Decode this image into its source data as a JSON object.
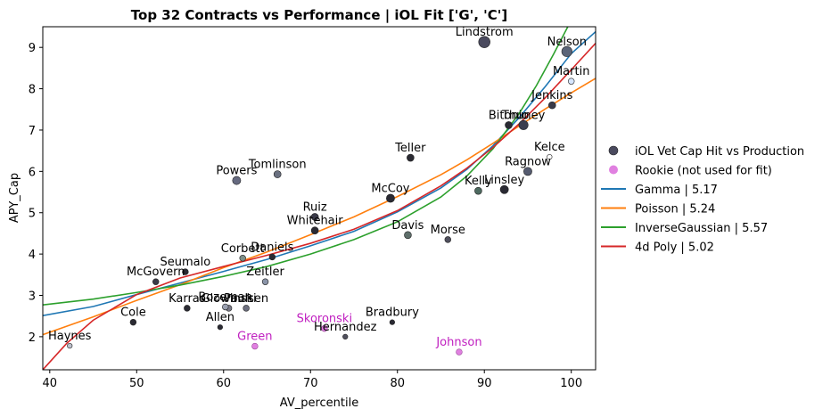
{
  "chart_data": {
    "type": "scatter",
    "title": "Top 32 Contracts vs Performance | iOL Fit ['G', 'C']",
    "xlabel": "AV_percentile",
    "ylabel": "APY_Cap",
    "xlim": [
      39.2,
      102.8
    ],
    "ylim": [
      1.2,
      9.5
    ],
    "xticks": [
      40,
      50,
      60,
      70,
      80,
      90,
      100
    ],
    "yticks": [
      2,
      3,
      4,
      5,
      6,
      7,
      8,
      9
    ],
    "legend_position": "right",
    "points": [
      {
        "name": "Lindstrom",
        "x": 90.0,
        "y": 9.13,
        "size": 9,
        "color": "#4a4a5e",
        "rookie": false
      },
      {
        "name": "Nelson",
        "x": 99.5,
        "y": 8.9,
        "size": 8,
        "color": "#5a6478",
        "rookie": false
      },
      {
        "name": "Martin",
        "x": 100.0,
        "y": 8.18,
        "size": 4,
        "color": "#d7e6ff",
        "rookie": false
      },
      {
        "name": "Jenkins",
        "x": 97.8,
        "y": 7.6,
        "size": 5,
        "color": "#3a3a48",
        "rookie": false
      },
      {
        "name": "Bitonio",
        "x": 92.8,
        "y": 7.12,
        "size": 5,
        "color": "#2a2a33",
        "rookie": false
      },
      {
        "name": "Thuney",
        "x": 94.5,
        "y": 7.12,
        "size": 7,
        "color": "#3b3e4e",
        "rookie": false
      },
      {
        "name": "Teller",
        "x": 81.5,
        "y": 6.33,
        "size": 5,
        "color": "#2a2a33",
        "rookie": false
      },
      {
        "name": "Kelce",
        "x": 97.5,
        "y": 6.35,
        "size": 3,
        "color": "#ffffff",
        "rookie": false
      },
      {
        "name": "Ragnow",
        "x": 95.0,
        "y": 6.0,
        "size": 6,
        "color": "#555b70",
        "rookie": false
      },
      {
        "name": "Powers",
        "x": 61.5,
        "y": 5.78,
        "size": 6,
        "color": "#666a80",
        "rookie": false
      },
      {
        "name": "Tomlinson",
        "x": 66.2,
        "y": 5.93,
        "size": 5,
        "color": "#6a7080",
        "rookie": false
      },
      {
        "name": "Kelly",
        "x": 89.3,
        "y": 5.53,
        "size": 5,
        "color": "#4d6a60",
        "rookie": false
      },
      {
        "name": "Linsley",
        "x": 92.3,
        "y": 5.56,
        "size": 6,
        "color": "#2a2a33",
        "rookie": false
      },
      {
        "name": "McCoy",
        "x": 79.2,
        "y": 5.35,
        "size": 6,
        "color": "#2a2a33",
        "rookie": false
      },
      {
        "name": "Ruiz",
        "x": 70.5,
        "y": 4.9,
        "size": 5,
        "color": "#3a3a48",
        "rookie": false
      },
      {
        "name": "Whitehair",
        "x": 70.5,
        "y": 4.57,
        "size": 5,
        "color": "#2a2a33",
        "rookie": false
      },
      {
        "name": "Davis",
        "x": 81.2,
        "y": 4.46,
        "size": 5,
        "color": "#5e6e6a",
        "rookie": false
      },
      {
        "name": "Morse",
        "x": 85.8,
        "y": 4.35,
        "size": 4,
        "color": "#50505e",
        "rookie": false
      },
      {
        "name": "Corbett",
        "x": 62.2,
        "y": 3.9,
        "size": 4,
        "color": "#7d8f88",
        "rookie": false
      },
      {
        "name": "Daniels",
        "x": 65.6,
        "y": 3.93,
        "size": 4,
        "color": "#2a2a33",
        "rookie": false
      },
      {
        "name": "Seumalo",
        "x": 55.6,
        "y": 3.57,
        "size": 4,
        "color": "#2a2a33",
        "rookie": false
      },
      {
        "name": "Zeitler",
        "x": 64.8,
        "y": 3.33,
        "size": 4,
        "color": "#8a94a8",
        "rookie": false
      },
      {
        "name": "McGovern",
        "x": 52.2,
        "y": 3.33,
        "size": 4,
        "color": "#3a3a48",
        "rookie": false
      },
      {
        "name": "Karras",
        "x": 55.8,
        "y": 2.69,
        "size": 4,
        "color": "#2a2a33",
        "rookie": false
      },
      {
        "name": "Glowinski",
        "x": 60.6,
        "y": 2.69,
        "size": 4,
        "color": "#7a7a88",
        "rookie": false
      },
      {
        "name": "Bozeman",
        "x": 60.2,
        "y": 2.72,
        "size": 4,
        "color": "#9aa0b0",
        "rookie": false
      },
      {
        "name": "Paulsen",
        "x": 62.6,
        "y": 2.69,
        "size": 4,
        "color": "#6e7080",
        "rookie": false
      },
      {
        "name": "Cole",
        "x": 49.6,
        "y": 2.35,
        "size": 4,
        "color": "#2a2a33",
        "rookie": false
      },
      {
        "name": "Allen",
        "x": 59.6,
        "y": 2.23,
        "size": 3,
        "color": "#2a2a33",
        "rookie": false
      },
      {
        "name": "Bradbury",
        "x": 79.4,
        "y": 2.35,
        "size": 3,
        "color": "#2a2a33",
        "rookie": false
      },
      {
        "name": "Hernandez",
        "x": 74.0,
        "y": 2.0,
        "size": 3,
        "color": "#50505e",
        "rookie": false
      },
      {
        "name": "Haynes",
        "x": 42.3,
        "y": 1.78,
        "size": 3,
        "color": "#bcc0cc",
        "rookie": false
      },
      {
        "name": "Skoronski",
        "x": 71.6,
        "y": 2.2,
        "size": 4,
        "color": "#e080e0",
        "rookie": true
      },
      {
        "name": "Green",
        "x": 63.6,
        "y": 1.77,
        "size": 4,
        "color": "#e080e0",
        "rookie": true
      },
      {
        "name": "Johnson",
        "x": 87.1,
        "y": 1.63,
        "size": 4,
        "color": "#e080e0",
        "rookie": true
      }
    ],
    "series": [
      {
        "name": "Gamma | 5.17",
        "color": "#1f77b4",
        "x": [
          39.2,
          45,
          50,
          55,
          60,
          65,
          70,
          75,
          80,
          85,
          88,
          91,
          94,
          97,
          100,
          102.8
        ],
        "y": [
          2.51,
          2.73,
          3.02,
          3.3,
          3.58,
          3.87,
          4.2,
          4.55,
          5.02,
          5.6,
          6.05,
          6.62,
          7.3,
          8.05,
          8.85,
          9.38
        ]
      },
      {
        "name": "Poisson | 5.24",
        "color": "#ff7f0e",
        "x": [
          39.2,
          45,
          50,
          55,
          60,
          65,
          70,
          75,
          80,
          85,
          88,
          91,
          94,
          97,
          100,
          102.8
        ],
        "y": [
          2.05,
          2.48,
          2.88,
          3.26,
          3.67,
          4.05,
          4.47,
          4.9,
          5.39,
          5.92,
          6.28,
          6.68,
          7.1,
          7.51,
          7.9,
          8.25
        ]
      },
      {
        "name": "InverseGaussian | 5.57",
        "color": "#2ca02c",
        "x": [
          39.2,
          45,
          50,
          55,
          60,
          65,
          70,
          75,
          80,
          85,
          88,
          91,
          94,
          96,
          98,
          99.6
        ],
        "y": [
          2.77,
          2.91,
          3.07,
          3.25,
          3.46,
          3.7,
          4.0,
          4.35,
          4.78,
          5.38,
          5.89,
          6.55,
          7.4,
          8.08,
          8.85,
          9.5
        ]
      },
      {
        "name": "4d Poly | 5.02",
        "color": "#d62728",
        "x": [
          39.2,
          42,
          45,
          50,
          55,
          60,
          65,
          70,
          75,
          80,
          85,
          88,
          91,
          94,
          97,
          100,
          102.8
        ],
        "y": [
          1.2,
          1.85,
          2.4,
          3.02,
          3.42,
          3.7,
          3.97,
          4.26,
          4.6,
          5.05,
          5.65,
          6.08,
          6.58,
          7.15,
          7.78,
          8.46,
          9.1
        ]
      }
    ],
    "legend": {
      "scatter_label": "iOL Vet Cap Hit vs Production",
      "rookie_label": "Rookie (not used for fit)"
    }
  }
}
